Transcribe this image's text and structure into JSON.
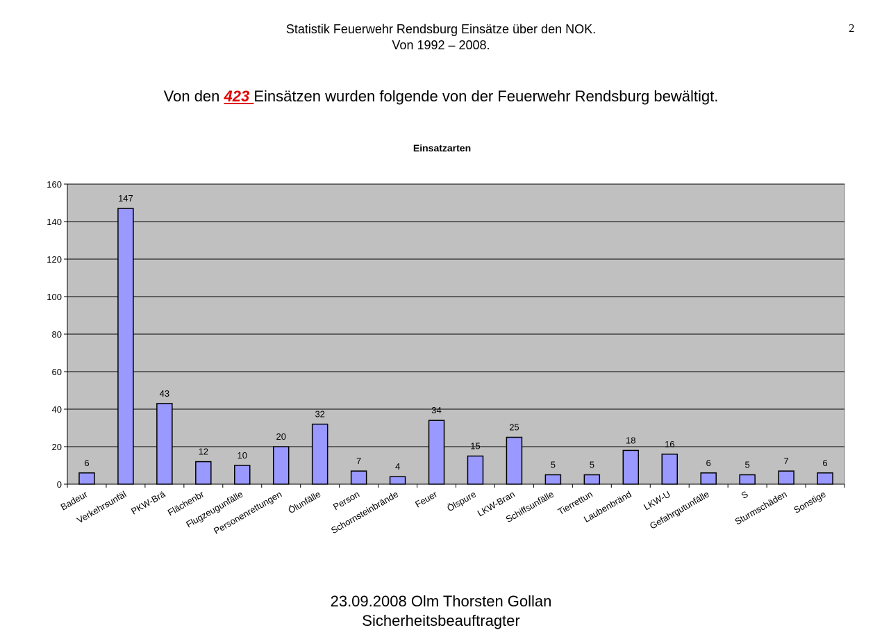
{
  "header": {
    "line1": "Statistik Feuerwehr Rendsburg  Einsätze über den NOK.",
    "line2": "Von 1992 – 2008.",
    "page_number": "2"
  },
  "summary": {
    "prefix": "Von den ",
    "count": "423 ",
    "suffix": "Einsätzen wurden folgende von der Feuerwehr Rendsburg bewältigt."
  },
  "chart_data": {
    "type": "bar",
    "title": "Einsatzarten",
    "categories": [
      "Badeur",
      "Verkehrsunfäl",
      "PKW-Brä",
      "Flächenbr",
      "Flugzeugunfälle",
      "Personenrettungen",
      "Ölunfälle",
      "Person",
      "Schornsteinbrände",
      "Feuer",
      "Ölspure",
      "LKW-Bran",
      "Schiffsunfälle",
      "Tierrettun",
      "Laubenbränd",
      "LKW-U",
      "Gefahrgutunfälle",
      "S",
      "Sturmschäden",
      "Sonstige"
    ],
    "values": [
      6,
      147,
      43,
      12,
      10,
      20,
      32,
      7,
      4,
      34,
      15,
      25,
      5,
      5,
      18,
      16,
      6,
      5,
      7,
      6
    ],
    "ylim": [
      0,
      160
    ],
    "yticks": [
      0,
      20,
      40,
      60,
      80,
      100,
      120,
      140,
      160
    ],
    "grid": true,
    "legend": false,
    "colors": {
      "plot_bg": "#c0c0c0",
      "bar_fill": "#9999ff",
      "bar_stroke": "#000000",
      "gridline": "#000000"
    }
  },
  "footer": {
    "line1": "23.09.2008 Olm Thorsten Gollan",
    "line2": "Sicherheitsbeauftragter"
  }
}
